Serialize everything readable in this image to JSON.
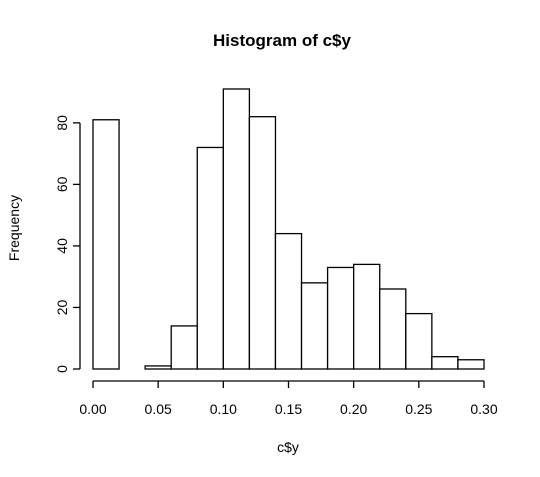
{
  "chart_data": {
    "type": "bar",
    "title": "Histogram of c$y",
    "xlabel": "c$y",
    "ylabel": "Frequency",
    "bin_edges": [
      0.0,
      0.02,
      0.04,
      0.06,
      0.08,
      0.1,
      0.12,
      0.14,
      0.16,
      0.18,
      0.2,
      0.22,
      0.24,
      0.26,
      0.28,
      0.3
    ],
    "values": [
      81,
      0,
      1,
      14,
      72,
      91,
      82,
      44,
      28,
      33,
      34,
      26,
      18,
      4,
      3
    ],
    "xlim": [
      0.0,
      0.3
    ],
    "ylim": [
      0,
      91
    ],
    "x_ticks": [
      0.0,
      0.05,
      0.1,
      0.15,
      0.2,
      0.25,
      0.3
    ],
    "x_tick_labels": [
      "0.00",
      "0.05",
      "0.10",
      "0.15",
      "0.20",
      "0.25",
      "0.30"
    ],
    "y_ticks": [
      0,
      20,
      40,
      60,
      80
    ],
    "y_tick_labels": [
      "0",
      "20",
      "40",
      "60",
      "80"
    ],
    "grid": false,
    "colors": {
      "bar_fill": "#ffffff",
      "bar_stroke": "#000000",
      "text": "#000000"
    }
  }
}
